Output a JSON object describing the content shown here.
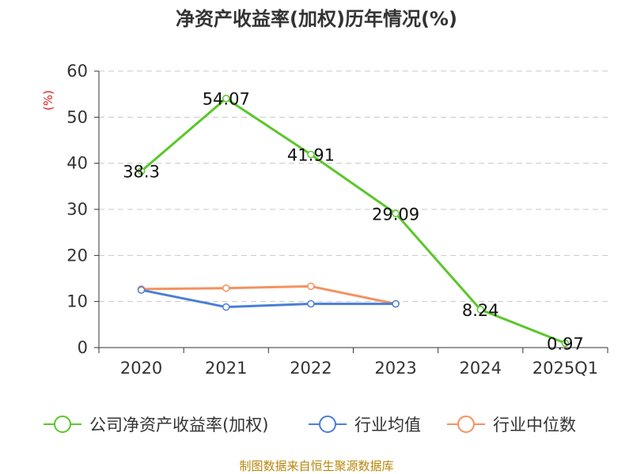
{
  "chart_data": {
    "type": "line",
    "title": "净资产收益率(加权)历年情况(%)",
    "ylabel": "(%)",
    "xlabel": "",
    "categories": [
      "2020",
      "2021",
      "2022",
      "2023",
      "2024",
      "2025Q1"
    ],
    "ylim": [
      0,
      60
    ],
    "yticks": [
      0,
      10,
      20,
      30,
      40,
      50,
      60
    ],
    "grid": true,
    "legend_position": "bottom",
    "series": [
      {
        "name": "公司净资产收益率(加权)",
        "color": "#5ac72a",
        "values": [
          38.3,
          54.07,
          41.91,
          29.09,
          8.24,
          0.97
        ],
        "labels": [
          "38.3",
          "54.07",
          "41.91",
          "29.09",
          "8.24",
          "0.97"
        ]
      },
      {
        "name": "行业均值",
        "color": "#4a7fd6",
        "values": [
          12.5,
          8.8,
          9.5,
          9.5,
          null,
          null
        ]
      },
      {
        "name": "行业中位数",
        "color": "#f59160",
        "values": [
          12.7,
          12.9,
          13.3,
          9.5,
          null,
          null
        ]
      }
    ]
  },
  "source": "制图数据来自恒生聚源数据库"
}
